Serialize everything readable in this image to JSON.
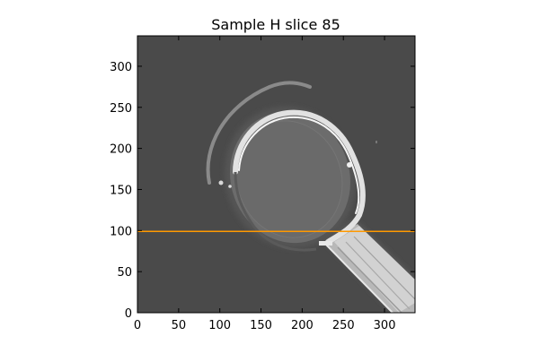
{
  "chart_data": {
    "type": "heatmap",
    "title": "Sample H slice 85",
    "xlabel": "",
    "ylabel": "",
    "xlim": [
      0,
      337
    ],
    "ylim": [
      0,
      337
    ],
    "x_ticks": [
      0,
      50,
      100,
      150,
      200,
      250,
      300
    ],
    "y_ticks": [
      0,
      50,
      100,
      150,
      200,
      250,
      300
    ],
    "grid": false,
    "colormap": "grayscale",
    "background_value_color": "#4a4a4a",
    "horizontal_line": {
      "y": 99,
      "color": "#ff9900"
    }
  }
}
